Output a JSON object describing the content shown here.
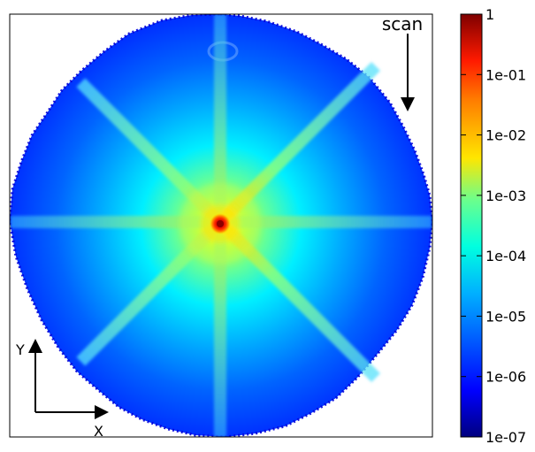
{
  "chart_data": {
    "type": "heatmap",
    "colorbar": {
      "scale": "log",
      "colormap": "jet",
      "range": [
        1e-07,
        1
      ],
      "tick_labels": [
        "1",
        "1e-01",
        "1e-02",
        "1e-03",
        "1e-04",
        "1e-05",
        "1e-06",
        "1e-07"
      ],
      "position": "right"
    },
    "annotations": {
      "scan_label": "scan",
      "x_axis_label": "X",
      "y_axis_label": "Y"
    },
    "description_values": {
      "center_peak_value": 1,
      "background_value": 1e-06,
      "diagonal_streak_value": 0.0001,
      "axis_streak_value": 1e-05
    },
    "colors": {
      "background": "#ffffff",
      "frame": "#000000",
      "arrow": "#000000"
    }
  }
}
